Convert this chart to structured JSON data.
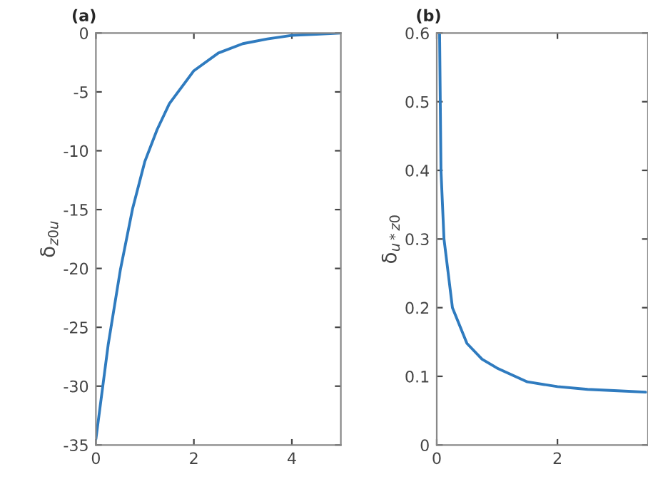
{
  "chart_data": [
    {
      "type": "line",
      "title": "(a)",
      "ylabel": "δ$_{z0u}$",
      "x": [
        0,
        0.25,
        0.5,
        0.75,
        1,
        1.25,
        1.5,
        2,
        2.5,
        3,
        3.5,
        4,
        4.5,
        5
      ],
      "series": [
        {
          "color": "#2f7bbf",
          "values": [
            -34.5,
            -26.5,
            -20.1,
            -14.9,
            -10.9,
            -8.2,
            -6.0,
            -3.2,
            -1.7,
            -0.9,
            -0.5,
            -0.2,
            -0.1,
            0
          ]
        }
      ],
      "xlim": [
        0,
        5
      ],
      "xticks": [
        0,
        2,
        4
      ],
      "ylim": [
        -35,
        0
      ],
      "yticks": [
        -35,
        -30,
        -25,
        -20,
        -15,
        -10,
        -5,
        0
      ],
      "grid": false
    },
    {
      "type": "line",
      "title": "(b)",
      "ylabel": "δ$_{u*z0}$",
      "x": [
        0.047,
        0.07,
        0.12,
        0.26,
        0.5,
        0.75,
        1,
        1.5,
        2,
        2.5,
        3,
        3.46
      ],
      "series": [
        {
          "color": "#2f7bbf",
          "values": [
            0.6,
            0.4,
            0.3,
            0.2,
            0.148,
            0.125,
            0.112,
            0.092,
            0.085,
            0.081,
            0.079,
            0.077
          ]
        }
      ],
      "xlim": [
        0,
        3.5
      ],
      "xticks": [
        0,
        2
      ],
      "ylim": [
        0,
        0.6
      ],
      "yticks": [
        0,
        0.1,
        0.2,
        0.3,
        0.4,
        0.5,
        0.6
      ],
      "grid": false
    }
  ]
}
